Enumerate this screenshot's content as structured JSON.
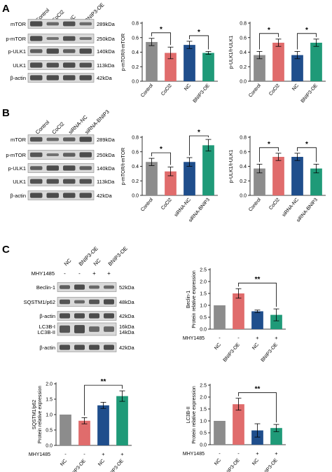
{
  "panel_letters": [
    "A",
    "B",
    "C"
  ],
  "colors": {
    "control": "#8c8c8c",
    "treatment_red": "#e06c6c",
    "nc_blue": "#1f4e8c",
    "oe_green": "#1f9a78",
    "band": "#3a3a3a",
    "blot_bg": "#d9d9d9"
  },
  "blots": [
    {
      "id": "A",
      "lanes": [
        "Control",
        "CoCl2",
        "NC",
        "BNIP3-OE"
      ],
      "rows": [
        {
          "name": "mTOR",
          "size": "289kDa"
        },
        {
          "name": "p-mTOR",
          "size": "250kDa"
        },
        {
          "name": "p-ULK1",
          "size": "140kDa"
        },
        {
          "name": "ULK1",
          "size": "113kDa"
        },
        {
          "name": "β-actin",
          "size": "42kDa"
        }
      ]
    },
    {
      "id": "B",
      "lanes": [
        "Control",
        "CoCl2",
        "siRNA-NC",
        "siRNA-BNIP3"
      ],
      "rows": [
        {
          "name": "mTOR",
          "size": "289kDa"
        },
        {
          "name": "p-mTOR",
          "size": "250kDa"
        },
        {
          "name": "p-ULK1",
          "size": "140kDa"
        },
        {
          "name": "ULK1",
          "size": "113kDa"
        },
        {
          "name": "β-actin",
          "size": "42kDa"
        }
      ]
    },
    {
      "id": "C",
      "lanes": [
        "NC",
        "BNIP3-OE",
        "NC",
        "BNIP3-OE"
      ],
      "treatment_label": "MHY1485",
      "treatment_signs": [
        "-",
        "-",
        "+",
        "+"
      ],
      "rows": [
        {
          "name": "Beclin-1",
          "size": "52kDa"
        },
        {
          "name": "SQSTM1/p62",
          "size": "48kDa"
        },
        {
          "name": "β-actin",
          "size": "42kDa"
        },
        {
          "name": "LC3B-I\nLC3B-II",
          "size": "16kDa\n14kDa"
        },
        {
          "name": "β-actin",
          "size": "42kDa"
        }
      ]
    }
  ],
  "chart_data": [
    {
      "type": "bar",
      "categories": [
        "Control",
        "CoCl2",
        "NC",
        "BNIP3-OE"
      ],
      "values": [
        0.54,
        0.39,
        0.5,
        0.39
      ],
      "errors": [
        0.05,
        0.08,
        0.05,
        0.02
      ],
      "ylabel": "p-mTOR/t-mTOR",
      "ylim": [
        0,
        0.8
      ],
      "yticks": [
        "0.0",
        "0.2",
        "0.4",
        "0.6",
        "0.8"
      ],
      "significance": [
        {
          "pair": [
            0,
            1
          ],
          "label": "*"
        },
        {
          "pair": [
            2,
            3
          ],
          "label": "*"
        }
      ]
    },
    {
      "type": "bar",
      "categories": [
        "Control",
        "CoCl2",
        "NC",
        "BNIP3-OE"
      ],
      "values": [
        0.36,
        0.53,
        0.36,
        0.53
      ],
      "errors": [
        0.05,
        0.05,
        0.05,
        0.05
      ],
      "ylabel": "p-ULK1/t-ULK1",
      "ylim": [
        0,
        0.8
      ],
      "yticks": [
        "0.0",
        "0.2",
        "0.4",
        "0.6",
        "0.8"
      ],
      "significance": [
        {
          "pair": [
            0,
            1
          ],
          "label": "*"
        },
        {
          "pair": [
            2,
            3
          ],
          "label": "*"
        }
      ]
    },
    {
      "type": "bar",
      "categories": [
        "Control",
        "CoCl2",
        "siRNA-NC",
        "siRNA-BNIP3"
      ],
      "values": [
        0.46,
        0.33,
        0.46,
        0.69
      ],
      "errors": [
        0.05,
        0.06,
        0.06,
        0.08
      ],
      "ylabel": "p-mTOR/t-mTOR",
      "ylim": [
        0,
        0.8
      ],
      "yticks": [
        "0.0",
        "0.2",
        "0.4",
        "0.6",
        "0.8"
      ],
      "significance": [
        {
          "pair": [
            0,
            1
          ],
          "label": "*"
        },
        {
          "pair": [
            2,
            3
          ],
          "label": "*"
        }
      ]
    },
    {
      "type": "bar",
      "categories": [
        "Control",
        "CoCl2",
        "siRNA-NC",
        "siRNA-BNIP3"
      ],
      "values": [
        0.37,
        0.53,
        0.53,
        0.37
      ],
      "errors": [
        0.06,
        0.05,
        0.05,
        0.06
      ],
      "ylabel": "p-ULK1/t-ULK1",
      "ylim": [
        0,
        0.8
      ],
      "yticks": [
        "0.0",
        "0.2",
        "0.4",
        "0.6",
        "0.8"
      ],
      "significance": [
        {
          "pair": [
            0,
            1
          ],
          "label": "*"
        },
        {
          "pair": [
            2,
            3
          ],
          "label": "*"
        }
      ]
    },
    {
      "type": "bar",
      "categories": [
        "NC",
        "BNIP3-OE",
        "NC",
        "BNIP3-OE"
      ],
      "treatment_label": "MHY1485",
      "treatment_signs": [
        "-",
        "-",
        "+",
        "+"
      ],
      "values": [
        1.0,
        1.5,
        0.75,
        0.6
      ],
      "errors": [
        0.0,
        0.2,
        0.05,
        0.25
      ],
      "ylabel": "Beclin-1\nProtein relative expression",
      "ylim": [
        0,
        2.5
      ],
      "yticks": [
        "0.0",
        "0.5",
        "1.0",
        "1.5",
        "2.0",
        "2.5"
      ],
      "significance": [
        {
          "pair": [
            1,
            3
          ],
          "label": "**"
        }
      ]
    },
    {
      "type": "bar",
      "categories": [
        "NC",
        "BNIP3-OE",
        "NC",
        "BNIP3-OE"
      ],
      "treatment_label": "MHY1485",
      "treatment_signs": [
        "-",
        "-",
        "+",
        "+"
      ],
      "values": [
        1.0,
        0.8,
        1.3,
        1.6
      ],
      "errors": [
        0.0,
        0.1,
        0.1,
        0.17
      ],
      "ylabel": "SQSTM1/p62\nProtein relative expression",
      "ylim": [
        0,
        2.0
      ],
      "yticks": [
        "0.0",
        "0.5",
        "1.0",
        "1.5",
        "2.0"
      ],
      "significance": [
        {
          "pair": [
            1,
            3
          ],
          "label": "**"
        }
      ]
    },
    {
      "type": "bar",
      "categories": [
        "NC",
        "BNIP3-OE",
        "NC",
        "BNIP3-OE"
      ],
      "treatment_label": "MHY1485",
      "treatment_signs": [
        "-",
        "-",
        "+",
        "+"
      ],
      "values": [
        1.0,
        1.7,
        0.6,
        0.7
      ],
      "errors": [
        0.0,
        0.25,
        0.28,
        0.15
      ],
      "ylabel": "LC3B-II\nProtein relative expression",
      "ylim": [
        0,
        2.5
      ],
      "yticks": [
        "0.0",
        "0.5",
        "1.0",
        "1.5",
        "2.0",
        "2.5"
      ],
      "significance": [
        {
          "pair": [
            1,
            3
          ],
          "label": "**"
        }
      ]
    }
  ]
}
